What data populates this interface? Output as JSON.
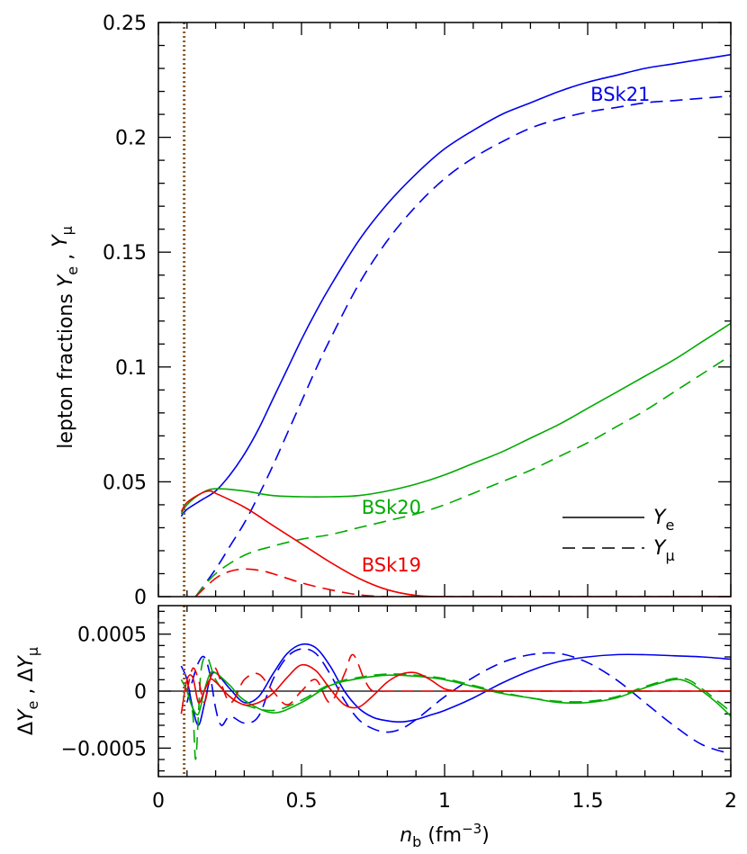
{
  "chart_data": [
    {
      "type": "line",
      "panel": "top",
      "ylabel": "lepton fractions Y_e , Y_μ",
      "xlim": [
        0,
        2
      ],
      "ylim": [
        0,
        0.25
      ],
      "x_ticks": [
        "0",
        "0.5",
        "1",
        "1.5",
        "2"
      ],
      "y_ticks": [
        {
          "v": 0,
          "label": "0"
        },
        {
          "v": 0.05,
          "label": "0.05"
        },
        {
          "v": 0.1,
          "label": "0.1"
        },
        {
          "v": 0.15,
          "label": "0.15"
        },
        {
          "v": 0.2,
          "label": "0.2"
        },
        {
          "v": 0.25,
          "label": "0.25"
        }
      ],
      "vline": {
        "x": 0.09,
        "color": "#8b5a2b",
        "style": "dotted"
      },
      "legend": {
        "placement": "bottom-right",
        "entries": [
          {
            "label": "Y",
            "sub": "e",
            "style": "solid"
          },
          {
            "label": "Y",
            "sub": "μ",
            "style": "dashed"
          }
        ]
      },
      "series": [
        {
          "name": "BSk21",
          "color": "#0000ee",
          "style": "solid",
          "x": [
            0.08,
            0.1,
            0.15,
            0.2,
            0.25,
            0.3,
            0.35,
            0.4,
            0.45,
            0.5,
            0.55,
            0.6,
            0.7,
            0.8,
            0.9,
            1.0,
            1.1,
            1.2,
            1.3,
            1.4,
            1.5,
            1.6,
            1.7,
            1.8,
            1.9,
            2.0
          ],
          "y": [
            0.035,
            0.038,
            0.042,
            0.046,
            0.053,
            0.062,
            0.073,
            0.086,
            0.099,
            0.112,
            0.124,
            0.135,
            0.155,
            0.171,
            0.184,
            0.195,
            0.203,
            0.21,
            0.215,
            0.22,
            0.224,
            0.227,
            0.23,
            0.232,
            0.234,
            0.236
          ]
        },
        {
          "name": "",
          "color": "#0000ee",
          "style": "dashed",
          "x": [
            0.13,
            0.2,
            0.25,
            0.3,
            0.35,
            0.4,
            0.45,
            0.5,
            0.55,
            0.6,
            0.7,
            0.8,
            0.9,
            1.0,
            1.1,
            1.2,
            1.3,
            1.4,
            1.5,
            1.6,
            1.7,
            1.8,
            1.9,
            2.0
          ],
          "y": [
            0.0,
            0.012,
            0.022,
            0.032,
            0.044,
            0.057,
            0.071,
            0.085,
            0.099,
            0.112,
            0.136,
            0.155,
            0.17,
            0.182,
            0.191,
            0.198,
            0.204,
            0.208,
            0.211,
            0.213,
            0.215,
            0.216,
            0.217,
            0.218
          ]
        },
        {
          "name": "BSk20",
          "color": "#00aa00",
          "style": "solid",
          "x": [
            0.08,
            0.1,
            0.15,
            0.2,
            0.3,
            0.4,
            0.5,
            0.6,
            0.7,
            0.8,
            0.9,
            1.0,
            1.1,
            1.2,
            1.3,
            1.4,
            1.5,
            1.6,
            1.7,
            1.8,
            1.9,
            2.0
          ],
          "y": [
            0.036,
            0.04,
            0.045,
            0.047,
            0.046,
            0.044,
            0.0435,
            0.0435,
            0.044,
            0.046,
            0.049,
            0.053,
            0.058,
            0.063,
            0.069,
            0.075,
            0.082,
            0.089,
            0.096,
            0.103,
            0.111,
            0.119
          ]
        },
        {
          "name": "",
          "color": "#00aa00",
          "style": "dashed",
          "x": [
            0.13,
            0.2,
            0.3,
            0.4,
            0.5,
            0.6,
            0.7,
            0.8,
            0.9,
            1.0,
            1.1,
            1.2,
            1.3,
            1.4,
            1.5,
            1.6,
            1.7,
            1.8,
            1.9,
            2.0
          ],
          "y": [
            0.0,
            0.01,
            0.018,
            0.022,
            0.025,
            0.027,
            0.03,
            0.033,
            0.036,
            0.04,
            0.045,
            0.05,
            0.055,
            0.061,
            0.067,
            0.074,
            0.081,
            0.089,
            0.097,
            0.105
          ]
        },
        {
          "name": "BSk19",
          "color": "#ee0000",
          "style": "solid",
          "x": [
            0.08,
            0.1,
            0.15,
            0.18,
            0.2,
            0.3,
            0.4,
            0.5,
            0.6,
            0.7,
            0.8,
            0.9,
            1.0,
            1.2,
            1.5,
            2.0
          ],
          "y": [
            0.037,
            0.041,
            0.045,
            0.046,
            0.045,
            0.039,
            0.031,
            0.023,
            0.015,
            0.008,
            0.003,
            0.0005,
            0.0,
            0.0,
            0.0,
            0.0
          ]
        },
        {
          "name": "",
          "color": "#ee0000",
          "style": "dashed",
          "x": [
            0.13,
            0.2,
            0.25,
            0.3,
            0.35,
            0.4,
            0.5,
            0.6,
            0.7,
            0.8,
            0.9,
            1.0,
            1.5,
            2.0
          ],
          "y": [
            0.0,
            0.008,
            0.011,
            0.012,
            0.0115,
            0.01,
            0.006,
            0.003,
            0.0008,
            0.0,
            0.0,
            0.0,
            0.0,
            0.0
          ]
        }
      ]
    },
    {
      "type": "line",
      "panel": "bottom",
      "xlabel": "n_b (fm^-3)",
      "ylabel": "ΔY_e , ΔY_μ",
      "xlim": [
        0,
        2
      ],
      "ylim": [
        -0.00075,
        0.00075
      ],
      "x_ticks": [
        "0",
        "0.5",
        "1",
        "1.5",
        "2"
      ],
      "y_ticks": [
        {
          "v": 0.0005,
          "label": "0.0005"
        },
        {
          "v": 0,
          "label": "0"
        },
        {
          "v": -0.0005,
          "label": "−0.0005"
        }
      ],
      "vline": {
        "x": 0.09,
        "color": "#8b5a2b",
        "style": "dotted"
      },
      "series": [
        {
          "name": "",
          "color": "#0000ee",
          "style": "solid",
          "x": [
            0.08,
            0.1,
            0.12,
            0.14,
            0.16,
            0.18,
            0.2,
            0.25,
            0.3,
            0.35,
            0.4,
            0.45,
            0.5,
            0.55,
            0.6,
            0.65,
            0.7,
            0.75,
            0.8,
            0.85,
            0.9,
            0.95,
            1.0,
            1.1,
            1.2,
            1.3,
            1.4,
            1.5,
            1.6,
            1.7,
            1.8,
            1.9,
            2.0
          ],
          "y": [
            0.00022,
            0.0001,
            -0.00015,
            -0.0003,
            -0.00012,
            0.0001,
            0.00016,
            2e-05,
            -0.0001,
            -5e-05,
            0.00015,
            0.00033,
            0.00041,
            0.00038,
            0.00022,
            0.0,
            -0.00015,
            -0.00023,
            -0.00026,
            -0.00027,
            -0.00025,
            -0.00021,
            -0.00017,
            -6e-05,
            7e-05,
            0.00018,
            0.00026,
            0.0003,
            0.00032,
            0.00032,
            0.00031,
            0.0003,
            0.00028
          ]
        },
        {
          "name": "",
          "color": "#0000ee",
          "style": "dashed",
          "x": [
            0.1,
            0.12,
            0.14,
            0.16,
            0.18,
            0.2,
            0.22,
            0.25,
            0.3,
            0.35,
            0.4,
            0.45,
            0.5,
            0.55,
            0.6,
            0.65,
            0.7,
            0.75,
            0.8,
            0.85,
            0.9,
            0.95,
            1.0,
            1.1,
            1.2,
            1.3,
            1.4,
            1.5,
            1.6,
            1.7,
            1.8,
            1.9,
            2.0
          ],
          "y": [
            -0.0001,
            0.0001,
            0.00025,
            0.0003,
            0.00015,
            -0.00015,
            -0.0003,
            -0.00022,
            -0.00028,
            -0.00022,
            0.0001,
            0.0003,
            0.00037,
            0.00033,
            0.00015,
            -8e-05,
            -0.00025,
            -0.00033,
            -0.00036,
            -0.00033,
            -0.00025,
            -0.00015,
            -5e-05,
            0.00012,
            0.00025,
            0.00032,
            0.00033,
            0.00025,
            0.0001,
            -0.0001,
            -0.0003,
            -0.00047,
            -0.00055
          ]
        },
        {
          "name": "",
          "color": "#00aa00",
          "style": "solid",
          "x": [
            0.08,
            0.1,
            0.12,
            0.14,
            0.16,
            0.18,
            0.2,
            0.25,
            0.3,
            0.4,
            0.5,
            0.6,
            0.7,
            0.8,
            0.9,
            1.0,
            1.1,
            1.2,
            1.3,
            1.4,
            1.5,
            1.6,
            1.7,
            1.8,
            1.85,
            1.9,
            1.95,
            2.0
          ],
          "y": [
            0.0001,
            0.0,
            -0.00015,
            -0.0002,
            0.0,
            0.00015,
            0.00016,
            5e-05,
            -8e-05,
            -0.00019,
            -0.0001,
            5e-05,
            0.00011,
            0.00014,
            0.00013,
            0.0001,
            4e-05,
            -2e-05,
            -6e-05,
            -0.0001,
            -0.0001,
            -6e-05,
            3e-05,
            0.0001,
            8e-05,
            0.0,
            -0.0001,
            -0.00022
          ]
        },
        {
          "name": "",
          "color": "#00aa00",
          "style": "dashed",
          "x": [
            0.1,
            0.12,
            0.13,
            0.14,
            0.15,
            0.17,
            0.2,
            0.25,
            0.3,
            0.4,
            0.5,
            0.6,
            0.7,
            0.8,
            0.9,
            1.0,
            1.1,
            1.2,
            1.3,
            1.4,
            1.5,
            1.6,
            1.7,
            1.8,
            1.85,
            1.9,
            1.95,
            2.0
          ],
          "y": [
            0.0,
            -0.0002,
            -0.0006,
            -0.0002,
            0.0002,
            0.0003,
            0.0001,
            -5e-05,
            -0.00012,
            -0.00017,
            -8e-05,
            6e-05,
            0.00012,
            0.00015,
            0.00014,
            0.00011,
            5e-05,
            -1e-05,
            -6e-05,
            -9e-05,
            -9e-05,
            -5e-05,
            4e-05,
            0.00011,
            0.0001,
            2e-05,
            -8e-05,
            -0.00018
          ]
        },
        {
          "name": "",
          "color": "#ee0000",
          "style": "solid",
          "x": [
            0.08,
            0.1,
            0.12,
            0.14,
            0.16,
            0.18,
            0.2,
            0.25,
            0.3,
            0.35,
            0.4,
            0.45,
            0.5,
            0.55,
            0.6,
            0.65,
            0.7,
            0.75,
            0.8,
            0.85,
            0.9,
            0.95,
            1.0,
            1.05,
            1.1,
            1.5,
            2.0
          ],
          "y": [
            -0.0002,
            0.0001,
            0.00012,
            -0.0001,
            0.0,
            0.0001,
            8e-05,
            -5e-05,
            -0.00012,
            -0.0001,
            -2e-05,
            0.00012,
            0.00023,
            0.00018,
            2e-05,
            -0.00012,
            -0.00014,
            -4e-05,
            8e-05,
            0.00015,
            0.00016,
            0.0001,
            2e-05,
            0.0,
            0.0,
            0.0,
            0.0
          ]
        },
        {
          "name": "",
          "color": "#ee0000",
          "style": "dashed",
          "x": [
            0.1,
            0.12,
            0.14,
            0.16,
            0.18,
            0.2,
            0.25,
            0.3,
            0.35,
            0.4,
            0.45,
            0.5,
            0.55,
            0.6,
            0.65,
            0.68,
            0.72,
            0.75,
            0.8,
            1.0,
            1.5,
            2.0
          ],
          "y": [
            0.0,
            0.0002,
            0.0001,
            -0.0001,
            0.0001,
            0.0002,
            -0.0001,
            0.0001,
            0.00015,
            0.0,
            -0.00012,
            0.0,
            0.0001,
            -0.0001,
            0.00015,
            0.00032,
            0.0001,
            0.0,
            0.0,
            0.0,
            0.0,
            0.0
          ]
        }
      ]
    }
  ]
}
